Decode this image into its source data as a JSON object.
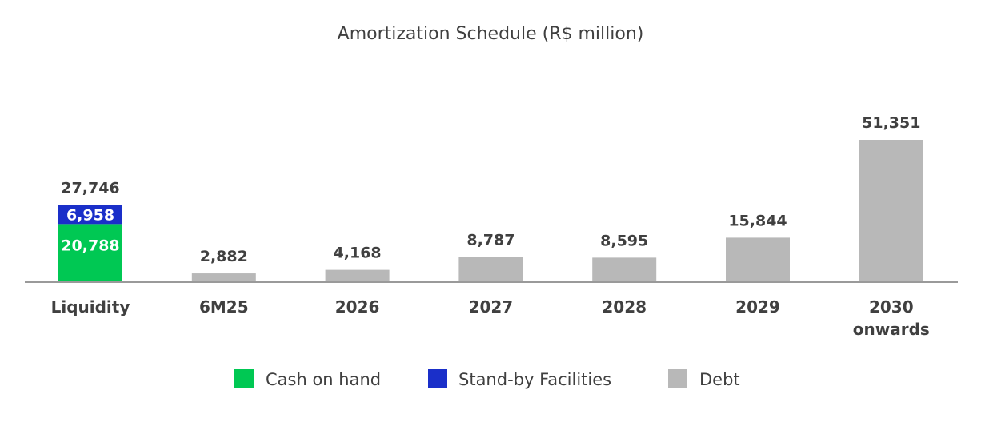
{
  "chart_data": {
    "type": "bar",
    "title": "Amortization Schedule (R$ million)",
    "categories": [
      [
        "Liquidity"
      ],
      [
        "6M25"
      ],
      [
        "2026"
      ],
      [
        "2027"
      ],
      [
        "2028"
      ],
      [
        "2029"
      ],
      [
        "2030",
        "onwards"
      ]
    ],
    "liquidity": {
      "total": 27746,
      "total_label": "27,746",
      "cash_on_hand": 20788,
      "cash_on_hand_label": "20,788",
      "standby_facilities": 6958,
      "standby_facilities_label": "6,958"
    },
    "debt": {
      "values": [
        2882,
        4168,
        8787,
        8595,
        15844,
        51351
      ],
      "labels": [
        "2,882",
        "4,168",
        "8,787",
        "8,595",
        "15,844",
        "51,351"
      ]
    },
    "legend": [
      {
        "name": "Cash on hand",
        "color": "#00c853"
      },
      {
        "name": "Stand-by Facilities",
        "color": "#1a2fc9"
      },
      {
        "name": "Debt",
        "color": "#b8b8b8"
      }
    ],
    "legend_position": "bottom-center",
    "grid": false,
    "colors": {
      "cash": "#00c853",
      "standby": "#1a2fc9",
      "debt": "#b8b8b8",
      "axis": "#9a9a9a",
      "text": "#404040"
    }
  }
}
